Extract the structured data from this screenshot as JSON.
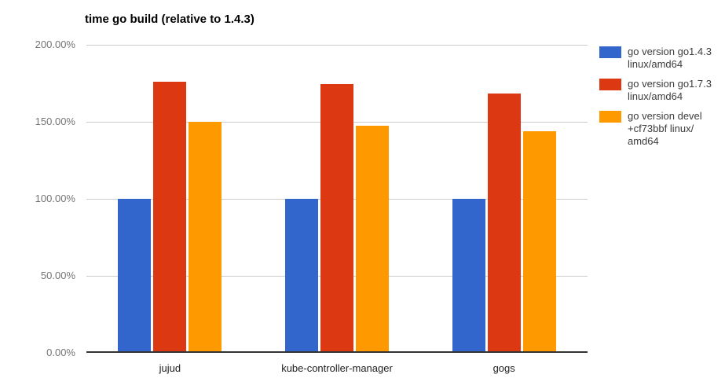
{
  "chart_data": {
    "type": "bar",
    "title": "time go build (relative to 1.4.3)",
    "categories": [
      "jujud",
      "kube-controller-manager",
      "gogs"
    ],
    "series": [
      {
        "name": "go version go1.4.3 linux/amd64",
        "color": "#3366cc",
        "values": [
          100,
          100,
          100
        ]
      },
      {
        "name": "go version go1.7.3 linux/amd64",
        "color": "#dc3912",
        "values": [
          176,
          174.5,
          168.5
        ]
      },
      {
        "name": "go version devel +cf73bbf linux/amd64",
        "color": "#ff9900",
        "values": [
          150,
          147.5,
          144
        ]
      }
    ],
    "xlabel": "",
    "ylabel": "",
    "ylim": [
      0,
      200
    ],
    "yticks": [
      {
        "value": 200,
        "label": "200.00%"
      },
      {
        "value": 150,
        "label": "150.00%"
      },
      {
        "value": 100,
        "label": "100.00%"
      },
      {
        "value": 50,
        "label": "50.00%"
      },
      {
        "value": 0,
        "label": "0.00%"
      }
    ],
    "grid": true,
    "legend_position": "right"
  },
  "legend": {
    "items": [
      {
        "color": "#3366cc",
        "lines": [
          "go version go1.4.3",
          "linux/amd64"
        ]
      },
      {
        "color": "#dc3912",
        "lines": [
          "go version go1.7.3",
          "linux/amd64"
        ]
      },
      {
        "color": "#ff9900",
        "lines": [
          "go version devel",
          "+cf73bbf linux/",
          "amd64"
        ]
      }
    ]
  },
  "colors": {
    "background": "#ffffff",
    "grid_line": "#cccccc",
    "axis_line": "#333333",
    "title_text": "#000000",
    "ytick_text": "#757575",
    "xtick_text": "#222222",
    "legend_text": "#3c3c3c"
  }
}
